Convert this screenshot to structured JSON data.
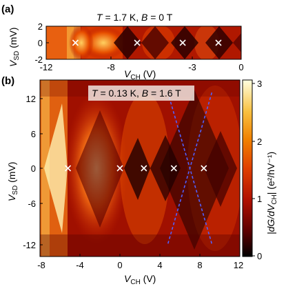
{
  "panels": [
    {
      "label": "(a)",
      "title_parts": {
        "T_sym": "T",
        "T_val": " = 1.7 K, ",
        "B_sym": "B",
        "B_val": " = 0 T"
      },
      "xlabel": {
        "main": "V",
        "sub": "CH",
        "unit": " (V)"
      },
      "ylabel": {
        "main": "V",
        "sub": "SD",
        "unit": " (mV)"
      },
      "xticks": [
        "-12",
        "-8",
        "-3",
        "0"
      ],
      "yticks": [
        "2",
        "0",
        "-2"
      ],
      "xlim": [
        -12,
        0
      ],
      "ylim": [
        -2,
        2
      ]
    },
    {
      "label": "(b)",
      "title_parts": {
        "T_sym": "T",
        "T_val": " = 0.13 K, ",
        "B_sym": "B",
        "B_val": " = 1.6 T"
      },
      "xlabel": {
        "main": "V",
        "sub": "CH",
        "unit": " (V)"
      },
      "ylabel": {
        "main": "V",
        "sub": "SD",
        "unit": " (mV)"
      },
      "xticks": [
        "-8",
        "-4",
        "0",
        "4",
        "8",
        "12"
      ],
      "yticks": [
        "12",
        "6",
        "0",
        "-6",
        "-12"
      ],
      "xlim": [
        -8,
        12
      ],
      "ylim": [
        -14,
        14
      ]
    }
  ],
  "colorbar": {
    "ticks": [
      "3",
      "2",
      "1",
      "0"
    ],
    "label": "|dG/dV",
    "label_sub": "CH",
    "label_unit": "| (e²/hV⁻¹)",
    "range": [
      0,
      3
    ],
    "colors": [
      "#000000",
      "#5a0000",
      "#b01000",
      "#e04000",
      "#f08000",
      "#f8c040",
      "#ffffe0"
    ]
  },
  "chart_data": [
    {
      "type": "heatmap",
      "panel": "a",
      "xlim": [
        -12,
        0
      ],
      "ylim": [
        -2,
        2
      ],
      "markers_x": [
        -10.2,
        -6.4,
        -3.6,
        -1.4
      ],
      "markers_y": [
        0,
        0,
        0,
        0
      ]
    },
    {
      "type": "heatmap",
      "panel": "b",
      "xlim": [
        -8,
        12
      ],
      "ylim": [
        -14,
        14
      ],
      "markers_x": [
        -5.2,
        0,
        2.4,
        5.4,
        8.4
      ],
      "markers_y": [
        0,
        0,
        0,
        0,
        0
      ],
      "dashed_lines": [
        {
          "x": [
            4.8,
            9.2
          ],
          "y": [
            12,
            -12
          ]
        },
        {
          "x": [
            9.2,
            4.8
          ],
          "y": [
            12,
            -12
          ]
        }
      ]
    }
  ]
}
